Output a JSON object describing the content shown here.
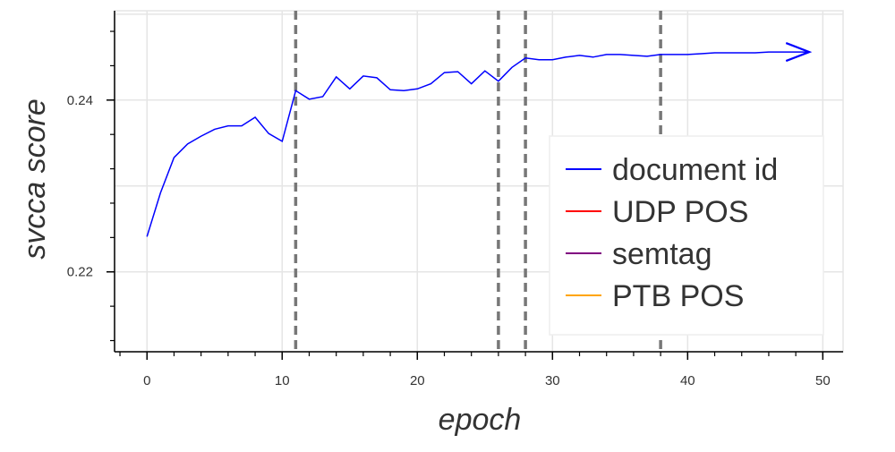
{
  "chart_data": {
    "type": "line",
    "xlabel": "epoch",
    "ylabel": "svcca score",
    "xlim": [
      -2.4,
      51.5
    ],
    "ylim": [
      0.2107,
      0.2504
    ],
    "x_ticks": [
      0,
      10,
      20,
      30,
      40,
      50
    ],
    "x_tick_labels": [
      "0",
      "10",
      "20",
      "30",
      "40",
      "50"
    ],
    "y_ticks": [
      0.22,
      0.24
    ],
    "y_tick_labels": [
      "0.22",
      "0.24"
    ],
    "grid": true,
    "legend_position": "right",
    "vertical_lines": [
      11,
      26,
      28,
      38
    ],
    "series": [
      {
        "name": "document id",
        "color": "#0000ff",
        "x": [
          0,
          1,
          2,
          3,
          4,
          5,
          6,
          7,
          8,
          9,
          10,
          11,
          12,
          13,
          14,
          15,
          16,
          17,
          18,
          19,
          20,
          21,
          22,
          23,
          24,
          25,
          26,
          27,
          28,
          29,
          30,
          31,
          32,
          33,
          34,
          35,
          36,
          37,
          38,
          39,
          40,
          41,
          42,
          43,
          44,
          45,
          46,
          47,
          48,
          49
        ],
        "y": [
          0.2241,
          0.2292,
          0.2333,
          0.2349,
          0.2358,
          0.2366,
          0.237,
          0.237,
          0.238,
          0.2361,
          0.2352,
          0.2411,
          0.2401,
          0.2404,
          0.2427,
          0.2413,
          0.2428,
          0.2426,
          0.2412,
          0.2411,
          0.2413,
          0.2419,
          0.2432,
          0.2433,
          0.2419,
          0.2434,
          0.2422,
          0.2438,
          0.2449,
          0.2447,
          0.2447,
          0.245,
          0.2452,
          0.245,
          0.2453,
          0.2453,
          0.2452,
          0.2451,
          0.2453,
          0.2453,
          0.2453,
          0.2454,
          0.2455,
          0.2455,
          0.2455,
          0.2455,
          0.2456,
          0.2456,
          0.2456,
          0.2456
        ]
      },
      {
        "name": "UDP POS",
        "color": "#ff0000",
        "x": [],
        "y": []
      },
      {
        "name": "semtag",
        "color": "#800080",
        "x": [],
        "y": []
      },
      {
        "name": "PTB POS",
        "color": "#ffa500",
        "x": [],
        "y": []
      }
    ]
  }
}
